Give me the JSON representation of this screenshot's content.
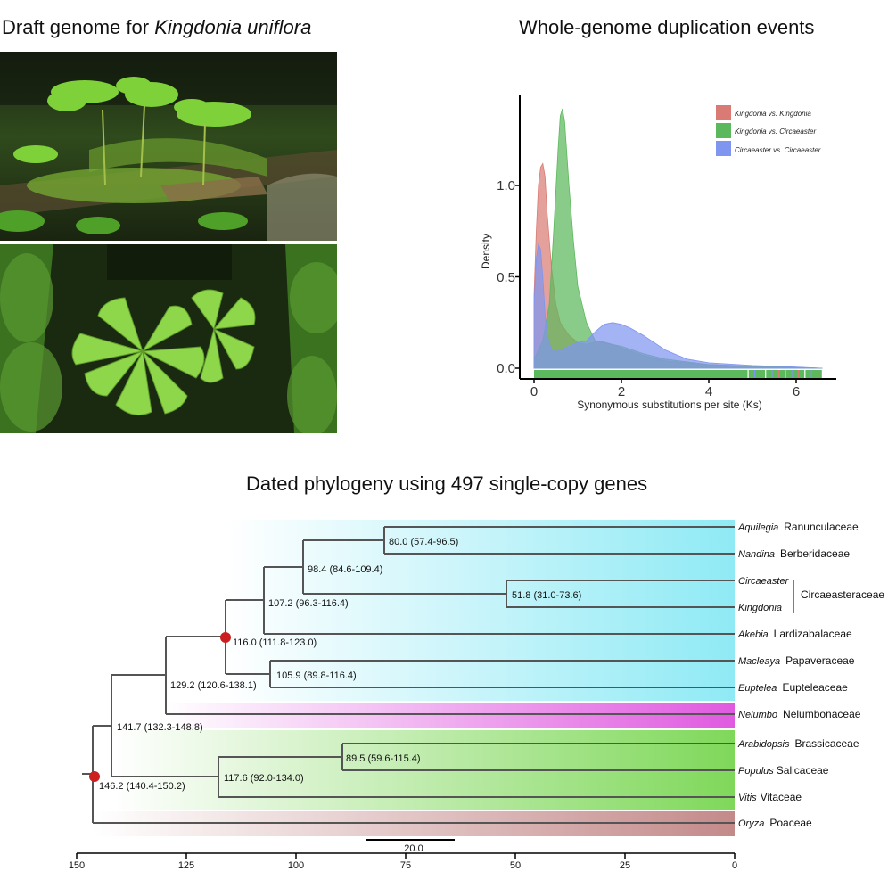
{
  "panel_a": {
    "title_prefix": "Draft genome for ",
    "title_species": "Kingdonia uniflora"
  },
  "panel_b": {
    "title": "Whole-genome duplication events",
    "chart_data": {
      "type": "area",
      "xlabel": "Synonymous substitutions per site (Ks)",
      "ylabel": "Density",
      "xlim": [
        -0.3,
        6.8
      ],
      "ylim": [
        -0.05,
        1.5
      ],
      "x_ticks": [
        "0",
        "2",
        "4",
        "6"
      ],
      "y_ticks": [
        "0.0",
        "0.5",
        "1.0"
      ],
      "grid": false,
      "legend_placement": "top-right",
      "series": [
        {
          "name": "Kingdonia vs. Kingdonia",
          "color": "#d97b74",
          "x": [
            0.0,
            0.05,
            0.1,
            0.15,
            0.2,
            0.25,
            0.3,
            0.4,
            0.5,
            0.6,
            0.8,
            1.0,
            1.2,
            1.5,
            1.8,
            2.0,
            2.5,
            3.0,
            4.0,
            5.0,
            6.0,
            6.6
          ],
          "y": [
            0.4,
            0.75,
            1.0,
            1.1,
            1.12,
            1.05,
            0.85,
            0.55,
            0.35,
            0.25,
            0.18,
            0.14,
            0.13,
            0.15,
            0.13,
            0.11,
            0.07,
            0.04,
            0.02,
            0.01,
            0.005,
            0.0
          ]
        },
        {
          "name": "Kingdonia vs. Circaeaster",
          "color": "#5cb85c",
          "x": [
            0.0,
            0.2,
            0.35,
            0.45,
            0.55,
            0.6,
            0.65,
            0.7,
            0.8,
            0.9,
            1.0,
            1.2,
            1.4,
            1.6,
            1.8,
            2.0,
            2.5,
            3.0,
            4.0,
            5.0,
            6.0,
            6.6
          ],
          "y": [
            0.05,
            0.15,
            0.35,
            0.75,
            1.2,
            1.38,
            1.42,
            1.35,
            1.0,
            0.7,
            0.45,
            0.25,
            0.15,
            0.14,
            0.13,
            0.12,
            0.08,
            0.05,
            0.02,
            0.01,
            0.005,
            0.0
          ]
        },
        {
          "name": "Circaeaster vs. Circaeaster",
          "color": "#7f95f0",
          "x": [
            0.0,
            0.05,
            0.1,
            0.15,
            0.2,
            0.25,
            0.3,
            0.4,
            0.5,
            0.6,
            0.8,
            1.0,
            1.2,
            1.4,
            1.6,
            1.8,
            2.0,
            2.2,
            2.5,
            3.0,
            3.5,
            4.0,
            5.0,
            6.0,
            6.6
          ],
          "y": [
            0.35,
            0.6,
            0.68,
            0.65,
            0.5,
            0.3,
            0.18,
            0.1,
            0.09,
            0.1,
            0.12,
            0.14,
            0.15,
            0.2,
            0.24,
            0.25,
            0.24,
            0.22,
            0.18,
            0.1,
            0.05,
            0.03,
            0.015,
            0.007,
            0.0
          ]
        }
      ]
    }
  },
  "panel_c": {
    "title": "Dated phylogeny using 497 single-copy genes",
    "scale_bar_label": "20.0",
    "axis_ticks": [
      "150",
      "125",
      "100",
      "75",
      "50",
      "25",
      "0"
    ],
    "node_labels": [
      "80.0 (57.4-96.5)",
      "98.4 (84.6-109.4)",
      "51.8 (31.0-73.6)",
      "107.2 (96.3-116.4)",
      "116.0 (111.8-123.0)",
      "105.9 (89.8-116.4)",
      "129.2 (120.6-138.1)",
      "141.7 (132.3-148.8)",
      "89.5 (59.6-115.4)",
      "117.6 (92.0-134.0)",
      "146.2 (140.4-150.2)"
    ],
    "taxa": [
      {
        "genus": "Aquilegia",
        "family": "Ranunculaceae"
      },
      {
        "genus": "Nandina",
        "family": "Berberidaceae"
      },
      {
        "genus": "Circaeaster",
        "family": ""
      },
      {
        "genus": "Kingdonia",
        "family": ""
      },
      {
        "genus": "Akebia",
        "family": "Lardizabalaceae"
      },
      {
        "genus": "Macleaya",
        "family": "Papaveraceae"
      },
      {
        "genus": "Euptelea",
        "family": "Eupteleaceae"
      },
      {
        "genus": "Nelumbo",
        "family": "Nelumbonaceae"
      },
      {
        "genus": "Arabidopsis",
        "family": "Brassicaceae"
      },
      {
        "genus": "Populus",
        "family": "Salicaceae"
      },
      {
        "genus": "Vitis",
        "family": "Vitaceae"
      },
      {
        "genus": "Oryza",
        "family": "Poaceae"
      }
    ],
    "circaeasteraceae_label": "Circaeasteraceae",
    "colors": {
      "ranunculales": "#8feaf5",
      "proteales": "#e05ae0",
      "rosids": "#7fd85a",
      "monocots": "#c48a8a",
      "branch": "#555555",
      "calibration": "#cc1f1f"
    }
  }
}
